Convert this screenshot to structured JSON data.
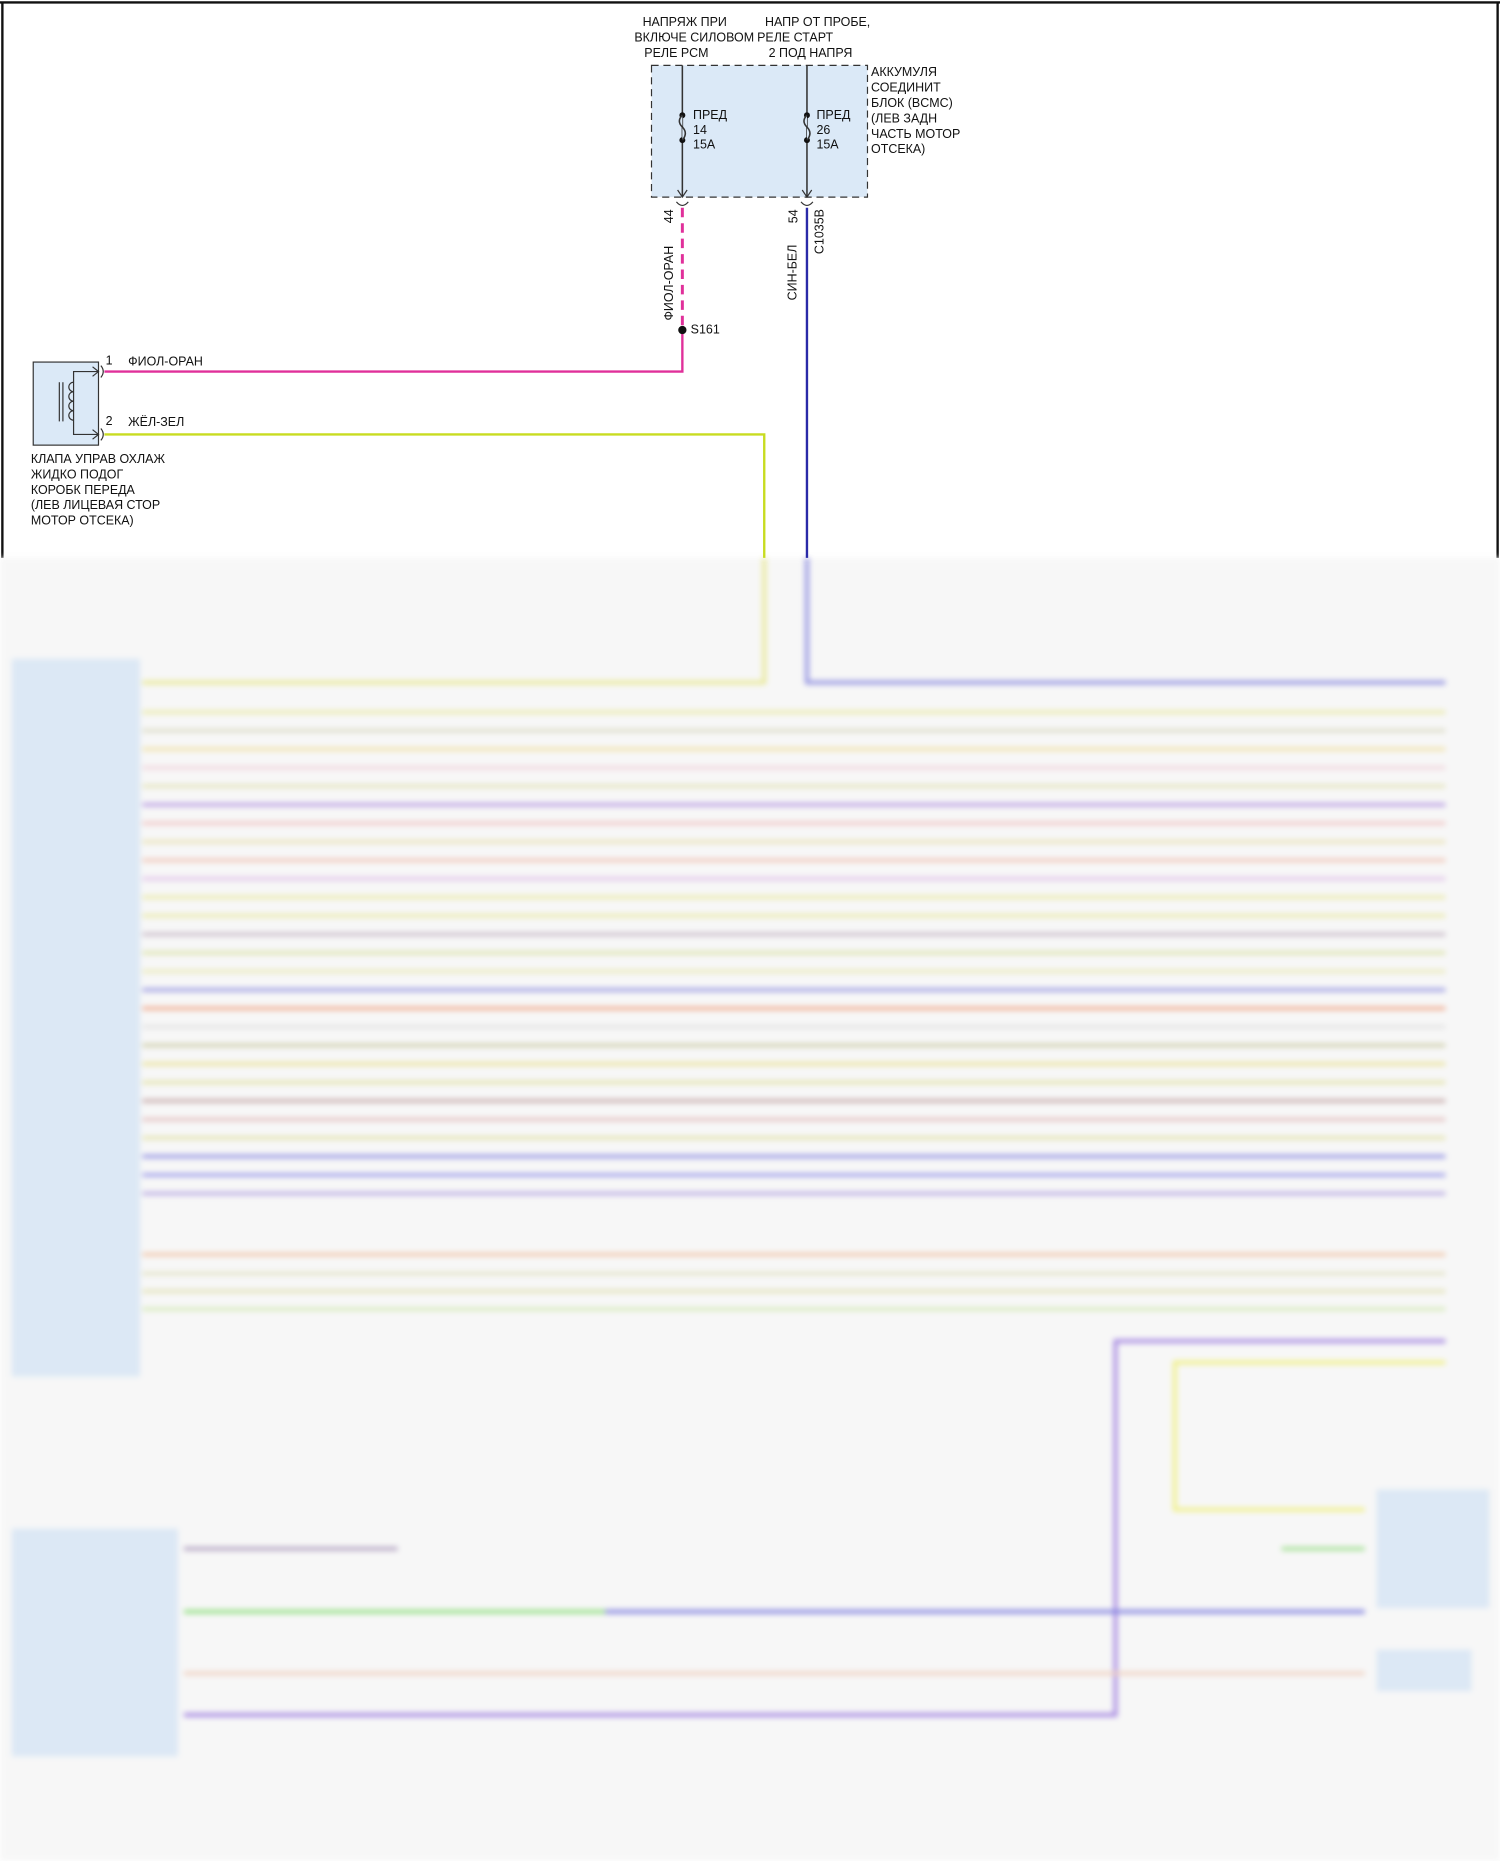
{
  "top_labels": {
    "left": [
      "НАПРЯЖ ПРИ",
      "ВКЛЮЧЕ СИЛОВОМ",
      "РЕЛЕ PCM"
    ],
    "right": [
      "НАПР ОТ ПРОБЕ,",
      "РЕЛЕ СТАРТ",
      "2 ПОД НАПРЯ"
    ]
  },
  "bcmc_block": {
    "label": [
      "АККУМУЛЯ",
      "СОЕДИНИТ",
      "БЛОК (BCMC)",
      "(ЛЕВ ЗАДН",
      "ЧАСТЬ МОТОР",
      "ОТСЕКА)"
    ],
    "fuse_left": [
      "ПРЕД",
      "14",
      "15A"
    ],
    "fuse_right": [
      "ПРЕД",
      "26",
      "15A"
    ],
    "pin_left": "44",
    "pin_right": "54",
    "connector": "C1035B"
  },
  "wires": {
    "vertical_left_color_label": "ФИОЛ-ОРАН",
    "vertical_right_color_label": "СИН-БЕЛ",
    "splice": "S161",
    "pin1": "1",
    "pin1_label": "ФИОЛ-ОРАН",
    "pin2": "2",
    "pin2_label": "ЖЁЛ-ЗЕЛ"
  },
  "valve": {
    "label": [
      "КЛАПА УПРАВ ОХЛАЖ",
      "ЖИДКО ПОДОГ",
      "КОРОБК ПЕРЕДА",
      "(ЛЕВ ЛИЦЕВАЯ СТОР",
      "МОТОР ОТСЕКА)"
    ]
  },
  "colors": {
    "magenta": "#e0309a",
    "blue": "#2a2aa8",
    "yellow_green": "#c8dc20",
    "block_fill": "#dbe9f7"
  },
  "blurred_wire_colors": [
    "#e8e8a0",
    "#d8d8c0",
    "#f0e0a0",
    "#f0d0d8",
    "#e0e0b0",
    "#b090e0",
    "#f0c0c0",
    "#e8e0b0",
    "#f0c0b0",
    "#e0c0e8",
    "#e8e8a0",
    "#e8e8a0",
    "#c0b0c0",
    "#d8e0a0",
    "#e8e8b0",
    "#9090e0",
    "#f0a080",
    "#e0e0e0",
    "#c8c8a0",
    "#e8e090",
    "#e0e0a0",
    "#c0a0a0",
    "#e0b8b8",
    "#e0e0a0",
    "#8080e0",
    "#9090e8",
    "#b0a0e0"
  ]
}
